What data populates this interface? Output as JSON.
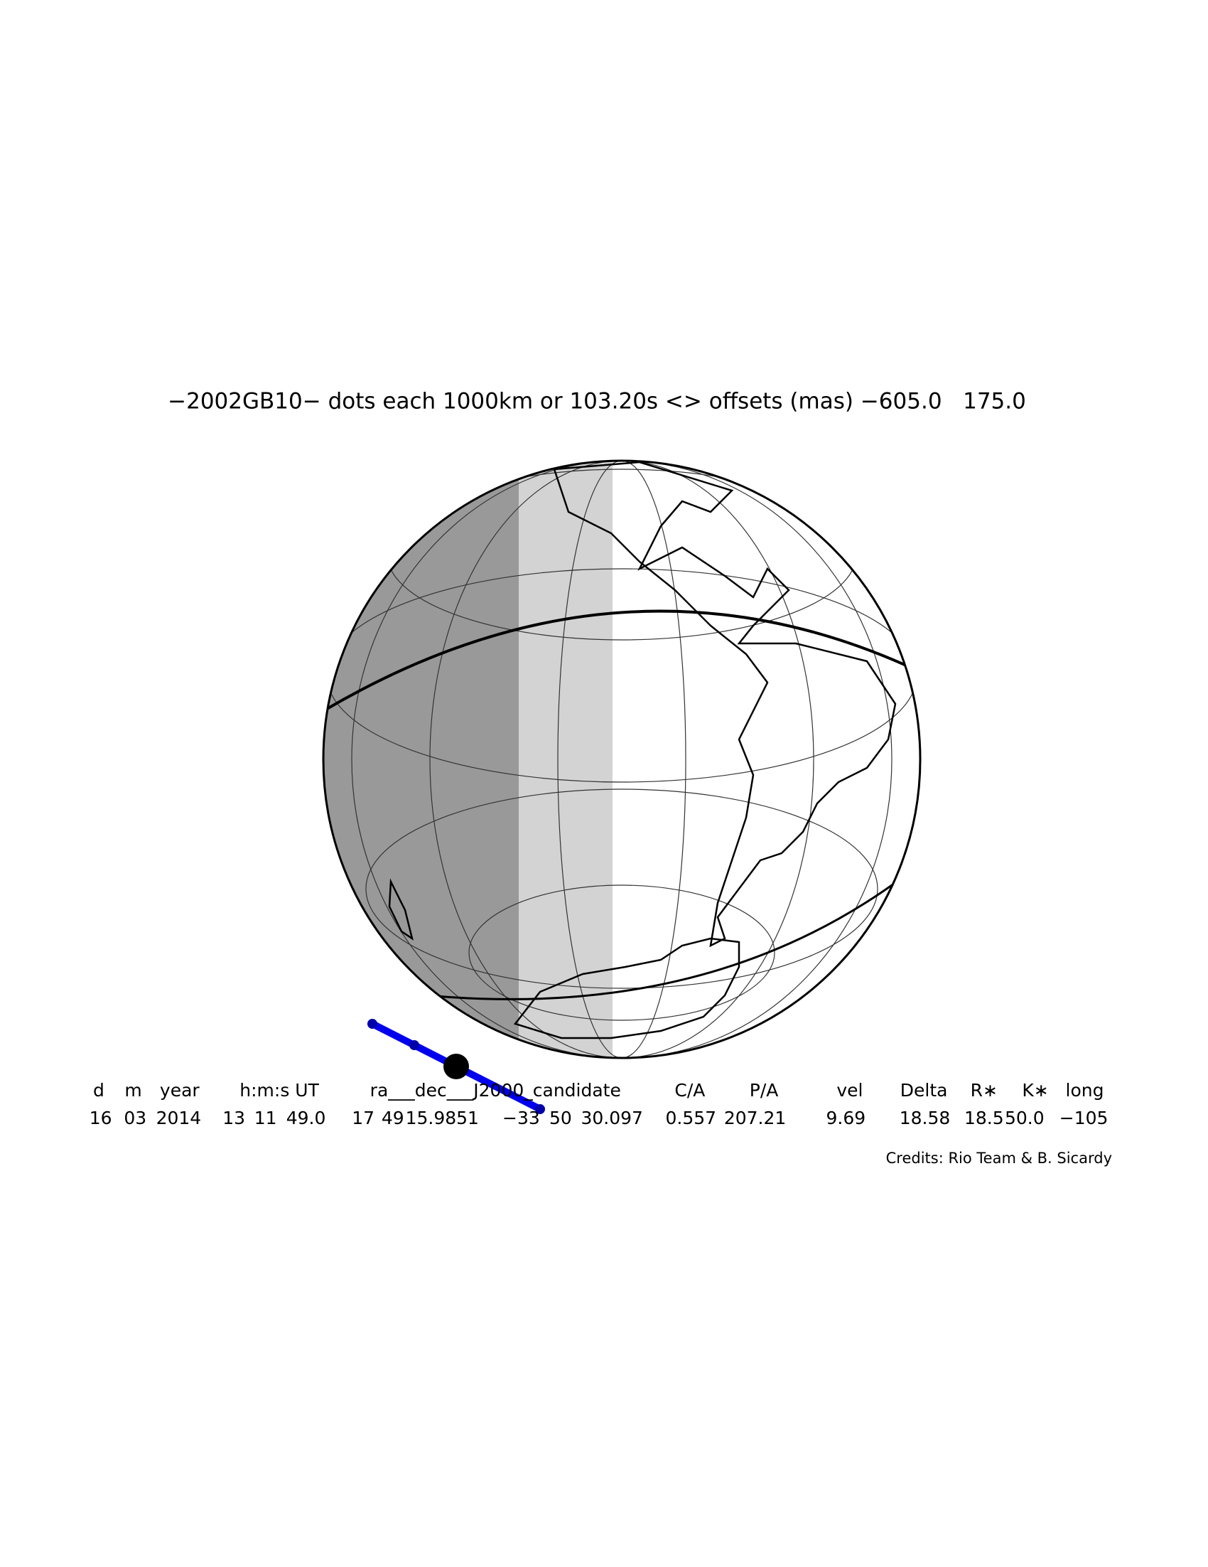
{
  "title": "−2002GB10− dots each 1000km or 103.20s <> offsets (mas) −605.0   175.0",
  "table": {
    "header": [
      "d",
      "m",
      "year",
      "h:m:s UT",
      "ra___dec___J2000_candidate",
      "C/A",
      "P/A",
      "vel",
      "Delta",
      "R∗",
      "K∗",
      "long"
    ],
    "row": [
      "16",
      "03",
      "2014",
      "13",
      "11",
      "49.0",
      "17",
      "49",
      "15.9851",
      "−33",
      "50",
      "30.097",
      "0.557",
      "207.21",
      "9.69",
      "18.58",
      "18.5",
      "50.0",
      "−105"
    ]
  },
  "credits": "Credits: Rio Team & B. Sicardy"
}
